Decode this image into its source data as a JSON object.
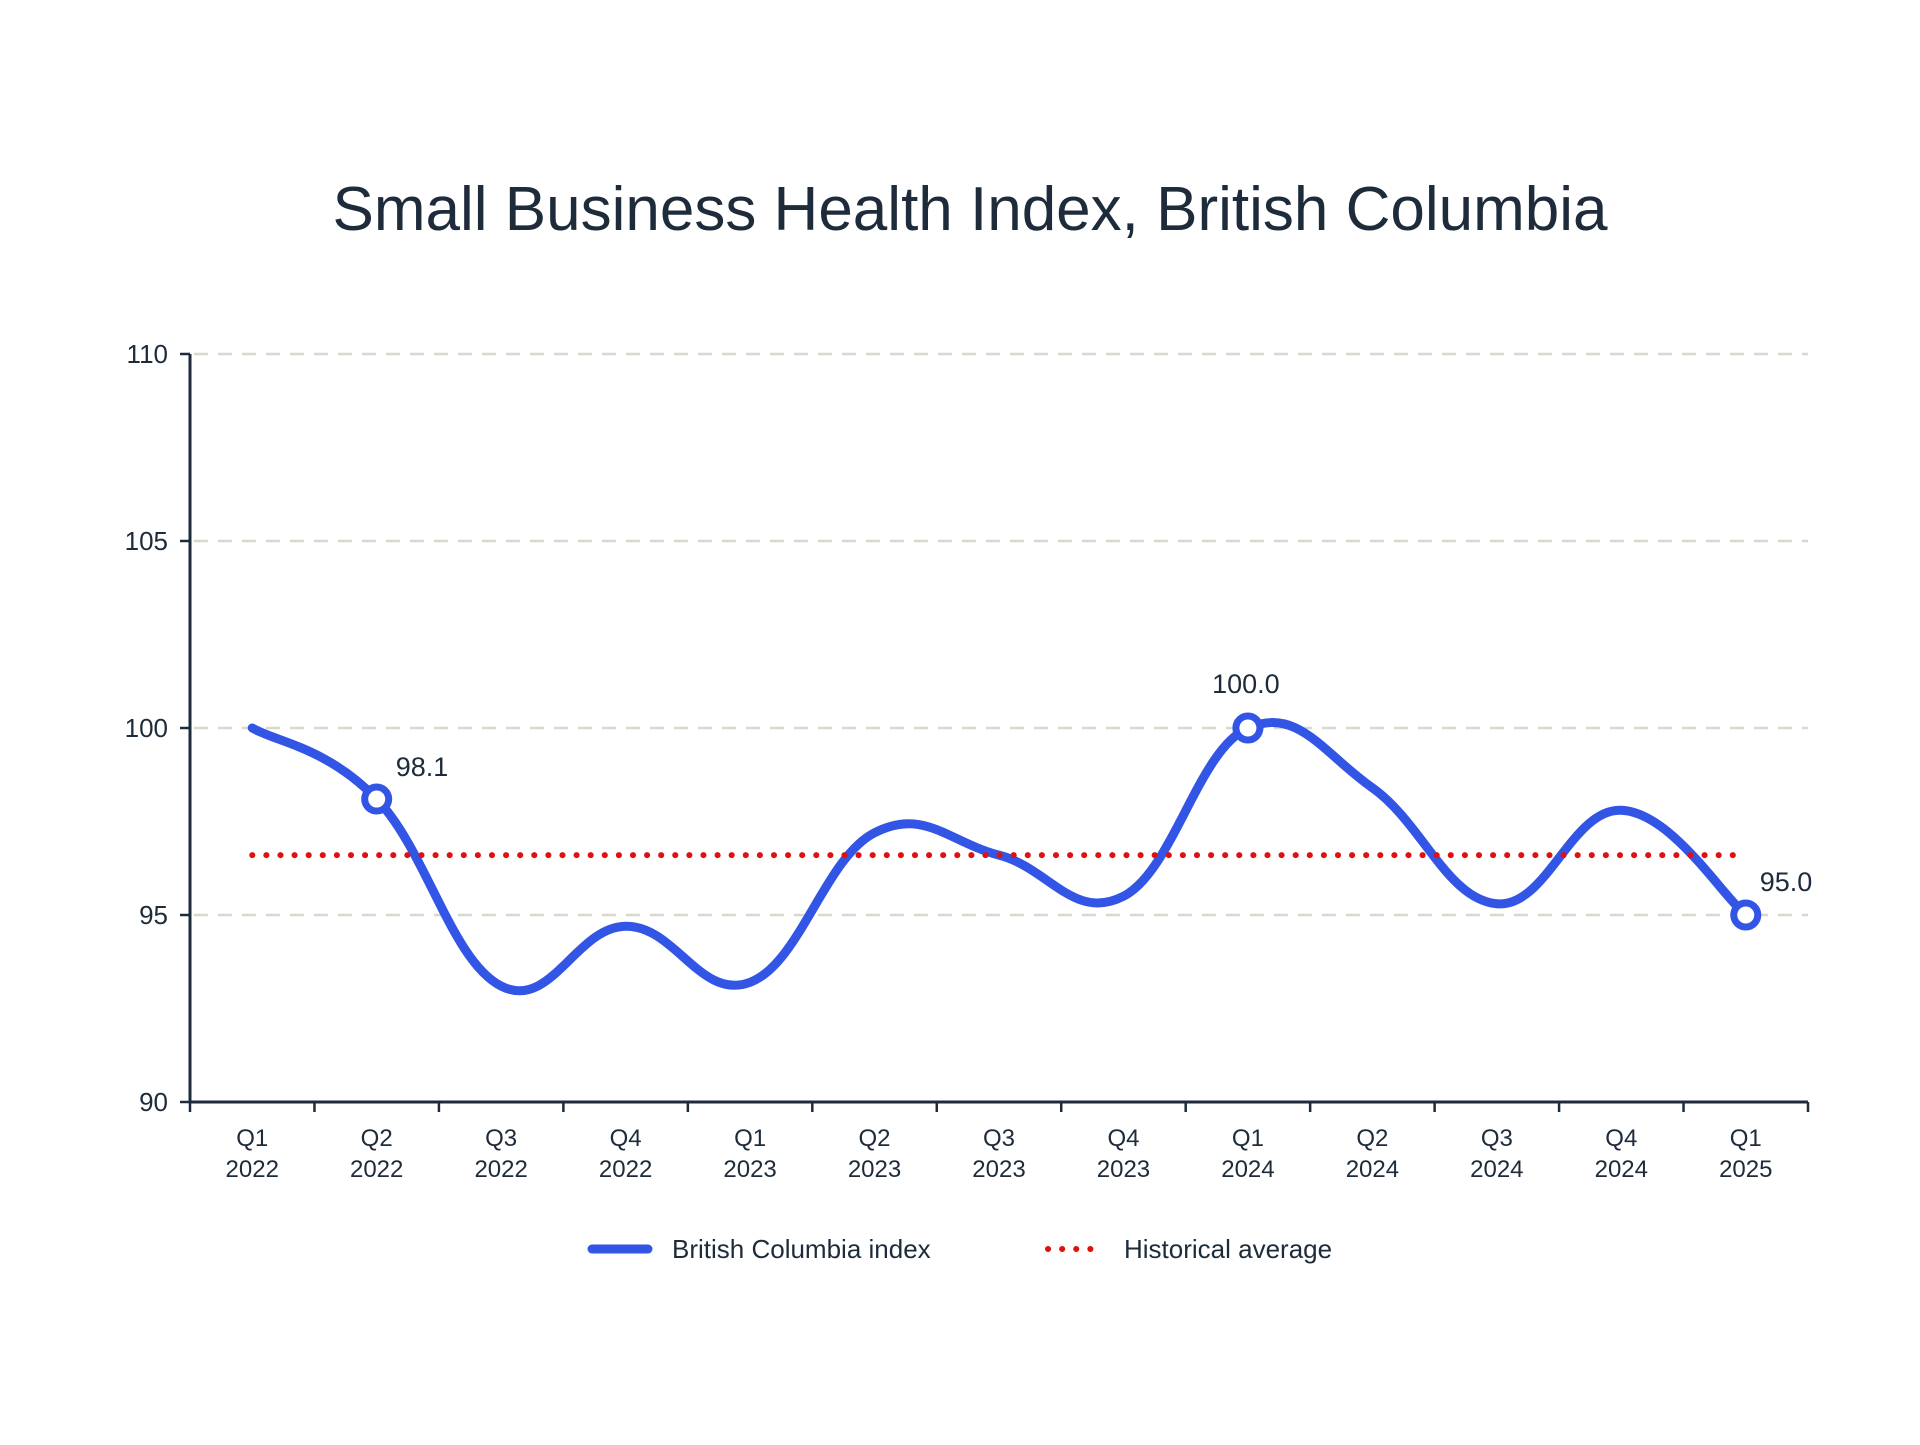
{
  "chart_data": {
    "type": "line",
    "title": "Small Business Health Index, British Columbia",
    "xlabel": "",
    "ylabel": "",
    "ylim": [
      90,
      110
    ],
    "yticks": [
      "90",
      "95",
      "100",
      "105",
      "110"
    ],
    "categories": [
      [
        "Q1",
        "2022"
      ],
      [
        "Q2",
        "2022"
      ],
      [
        "Q3",
        "2022"
      ],
      [
        "Q4",
        "2022"
      ],
      [
        "Q1",
        "2023"
      ],
      [
        "Q2",
        "2023"
      ],
      [
        "Q3",
        "2023"
      ],
      [
        "Q4",
        "2023"
      ],
      [
        "Q1",
        "2024"
      ],
      [
        "Q2",
        "2024"
      ],
      [
        "Q3",
        "2024"
      ],
      [
        "Q4",
        "2024"
      ],
      [
        "Q1",
        "2025"
      ]
    ],
    "series": [
      {
        "name": "British Columbia index",
        "color": "#3355e6",
        "style": "solid",
        "values": [
          100.0,
          98.1,
          93.1,
          94.7,
          93.2,
          97.2,
          96.6,
          95.5,
          100.0,
          98.4,
          95.3,
          97.8,
          95.0
        ]
      },
      {
        "name": "Historical average",
        "color": "#e01010",
        "style": "dotted",
        "values": [
          96.6,
          96.6,
          96.6,
          96.6,
          96.6,
          96.6,
          96.6,
          96.6,
          96.6,
          96.6,
          96.6,
          96.6,
          96.6
        ]
      }
    ],
    "annotations": [
      {
        "index": 1,
        "label": "98.1"
      },
      {
        "index": 8,
        "label": "100.0"
      },
      {
        "index": 12,
        "label": "95.0"
      }
    ],
    "grid": true,
    "legend_position": "bottom-center",
    "colors": {
      "text": "#1d2b3a",
      "axis": "#1d2b3a",
      "grid": "#d8d8cc"
    }
  }
}
